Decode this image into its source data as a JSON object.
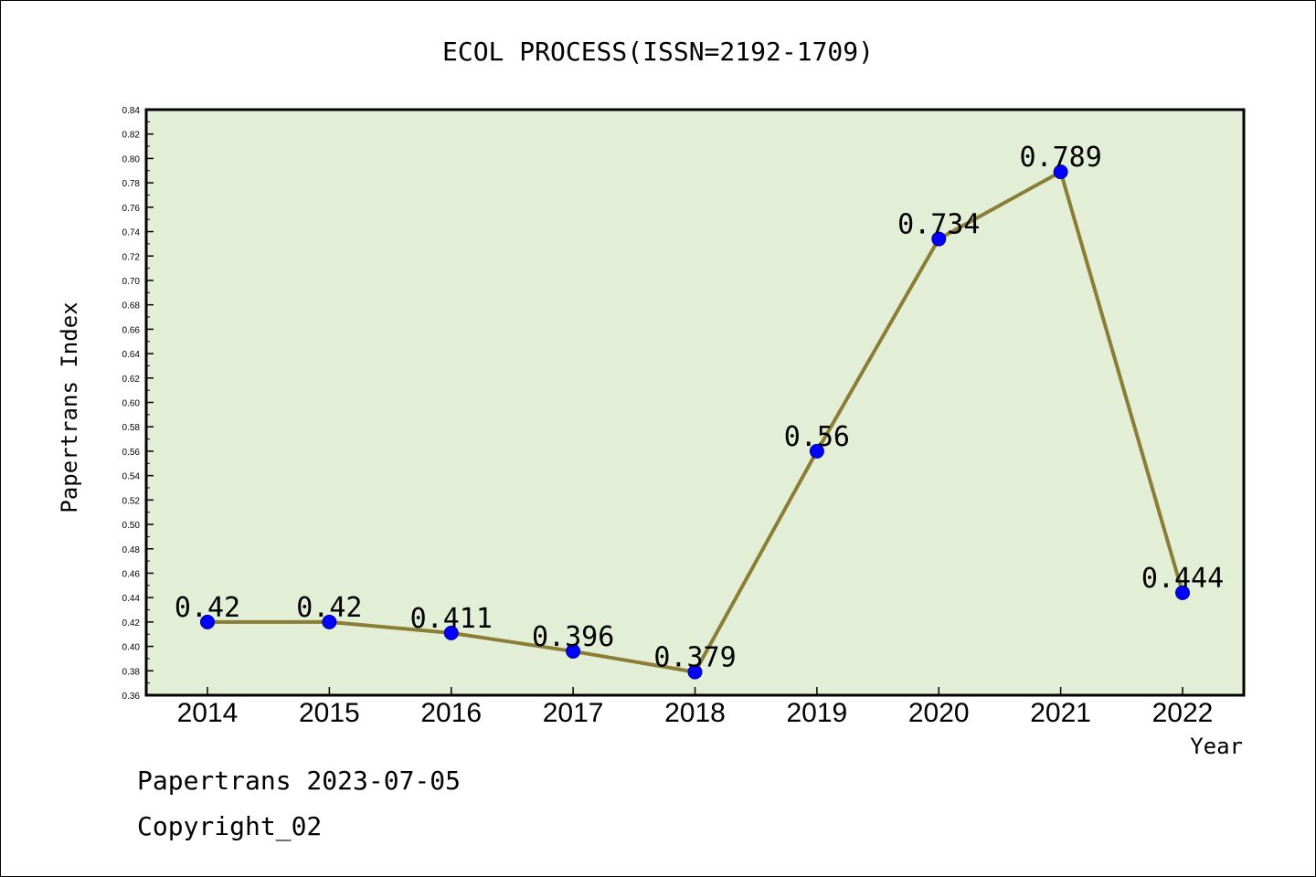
{
  "chart_data": {
    "type": "line",
    "title": "ECOL PROCESS(ISSN=2192-1709)",
    "xlabel": "Year",
    "ylabel": "Papertrans Index",
    "categories": [
      "2014",
      "2015",
      "2016",
      "2017",
      "2018",
      "2019",
      "2020",
      "2021",
      "2022"
    ],
    "series": [
      {
        "values": [
          0.42,
          0.42,
          0.411,
          0.396,
          0.379,
          0.56,
          0.734,
          0.789,
          0.444
        ],
        "labels": [
          "0.42",
          "0.42",
          "0.411",
          "0.396",
          "0.379",
          "0.56",
          "0.734",
          "0.789",
          "0.444"
        ]
      }
    ],
    "ylim": [
      0.36,
      0.84
    ],
    "yticks": [
      "0.36",
      "0.38",
      "0.40",
      "0.42",
      "0.44",
      "0.46",
      "0.48",
      "0.50",
      "0.52",
      "0.54",
      "0.56",
      "0.58",
      "0.60",
      "0.62",
      "0.64",
      "0.66",
      "0.68",
      "0.70",
      "0.72",
      "0.74",
      "0.76",
      "0.78",
      "0.80",
      "0.82",
      "0.84"
    ],
    "grid": false,
    "colors": {
      "plot_background": "#e2efd6",
      "line": "#8b7d35",
      "marker": "#0000ff"
    }
  },
  "footer": {
    "line1": "Papertrans 2023-07-05",
    "line2": "Copyright_02"
  }
}
